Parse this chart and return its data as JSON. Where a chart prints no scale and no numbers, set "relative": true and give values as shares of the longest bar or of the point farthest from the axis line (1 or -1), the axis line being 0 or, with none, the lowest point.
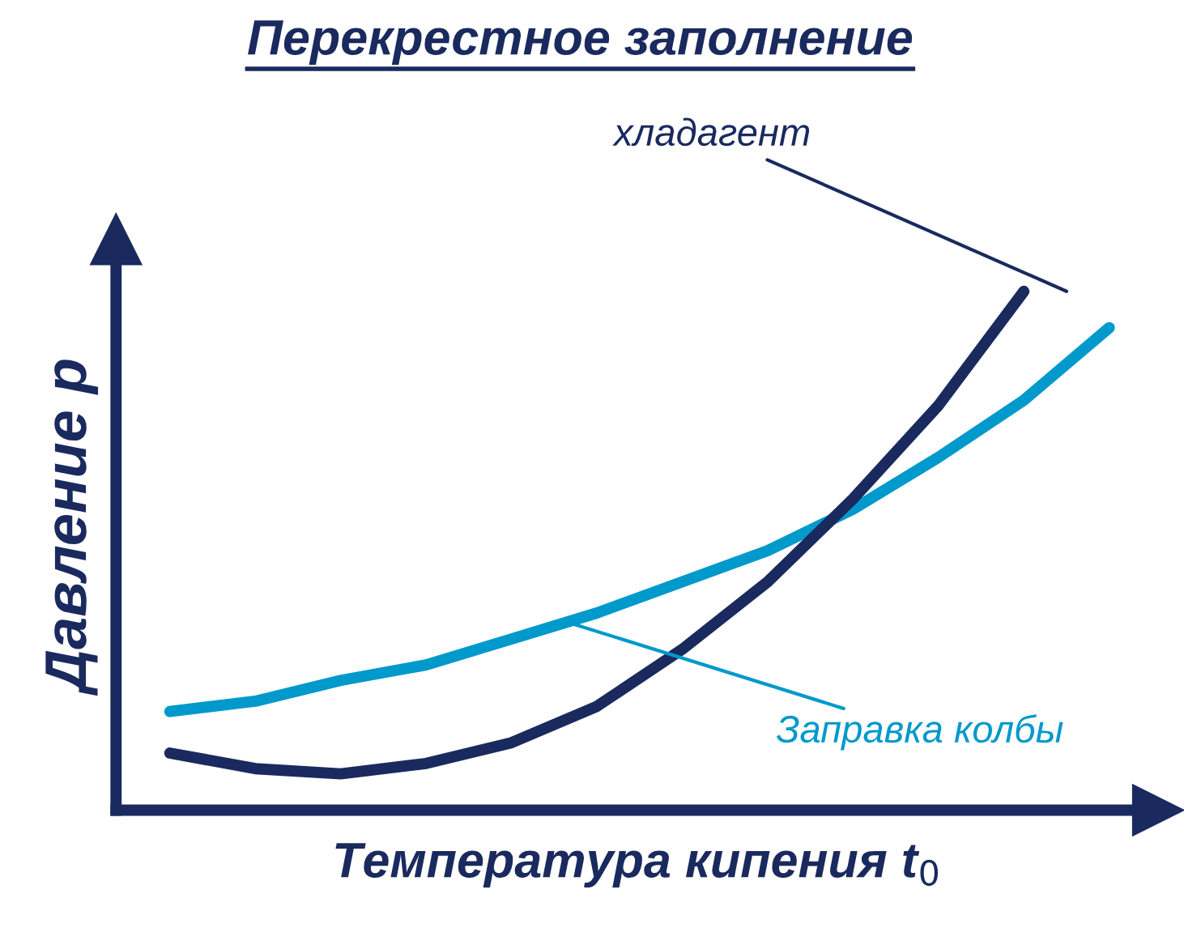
{
  "chart_data": {
    "type": "line",
    "title": "Перекрестное заполнение",
    "xlabel": "Температура кипения t$_{0}$",
    "ylabel": "Давление p",
    "relative": true,
    "categories": [
      null,
      null,
      null,
      null,
      null,
      null,
      null,
      null,
      null,
      null,
      null,
      null
    ],
    "series": [
      {
        "name": "Заправка колбы",
        "color": "#0099cc",
        "values": [
          0.19,
          0.21,
          0.25,
          0.28,
          0.33,
          0.38,
          0.44,
          0.5,
          0.58,
          0.68,
          0.79,
          0.93
        ]
      },
      {
        "name": "хладагент",
        "color": "#1a2a5e",
        "values": [
          0.11,
          0.08,
          0.07,
          0.09,
          0.13,
          0.2,
          0.31,
          0.44,
          0.6,
          0.78,
          1.0,
          null
        ]
      }
    ],
    "legend": false,
    "marker": "none",
    "line_style": "solid"
  }
}
